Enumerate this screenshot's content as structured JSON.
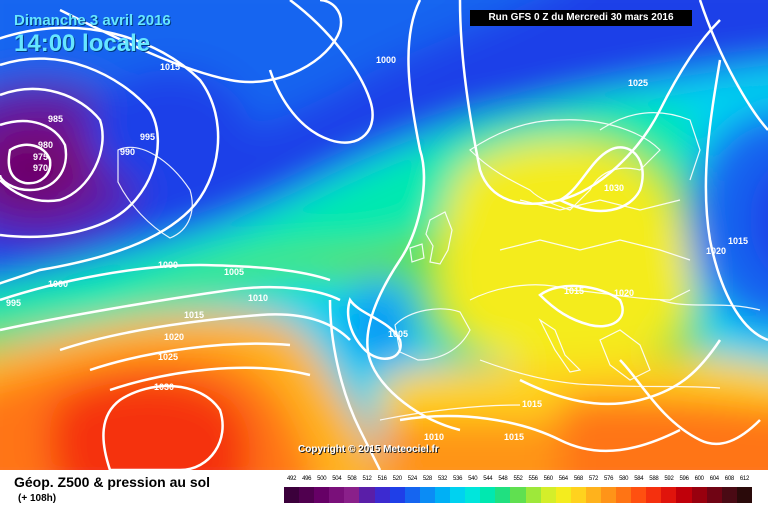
{
  "header": {
    "date_title": "Dimanche 3 avril 2016",
    "time_title": "14:00 locale",
    "run_info": "Run GFS 0 Z du Mercredi 30 mars 2016"
  },
  "copyright": "Copyright © 2015 Meteociel.fr",
  "legend": {
    "title": "Géop. Z500 & pression au sol",
    "subtitle": "(+ 108h)",
    "scale_values": [
      "492",
      "496",
      "500",
      "504",
      "508",
      "512",
      "516",
      "520",
      "524",
      "528",
      "532",
      "536",
      "540",
      "544",
      "548",
      "552",
      "556",
      "560",
      "564",
      "568",
      "572",
      "576",
      "580",
      "584",
      "588",
      "592",
      "596",
      "600",
      "604",
      "608",
      "612"
    ],
    "scale_colors": [
      "#3b003b",
      "#50004f",
      "#660066",
      "#7a107a",
      "#8a208a",
      "#5a1ea8",
      "#3c2ad0",
      "#1f3fe8",
      "#1565f0",
      "#0b8cf5",
      "#00b0f5",
      "#00d2f0",
      "#00e6dc",
      "#00e8b0",
      "#20e080",
      "#60e050",
      "#9ee83a",
      "#d4ee2a",
      "#f4ec1e",
      "#ffd21e",
      "#ffb21c",
      "#ff9418",
      "#ff7414",
      "#ff5010",
      "#f5300e",
      "#e0140c",
      "#c0000a",
      "#98000e",
      "#700414",
      "#4a0a14",
      "#2a0a0a"
    ]
  },
  "map": {
    "isobar_labels": [
      "1015",
      "1000",
      "985",
      "980",
      "975",
      "970",
      "995",
      "990",
      "1025",
      "1030",
      "1015",
      "1020",
      "1000",
      "1005",
      "1010",
      "1015",
      "1020",
      "1025",
      "1030",
      "995",
      "1000",
      "1005",
      "1015",
      "1020",
      "1015",
      "1010",
      "1015"
    ]
  },
  "colors": {
    "title_cyan": "#66e6ff",
    "isobar": "#ffffff"
  }
}
